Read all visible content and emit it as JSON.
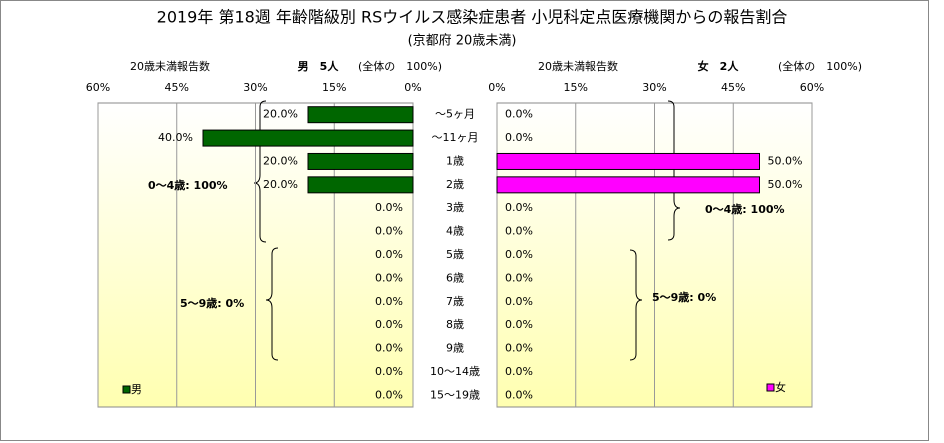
{
  "chart_data": {
    "type": "bar",
    "orientation": "horizontal-mirrored",
    "title": "2019年 第18週 年齢階級別 RSウイルス感染症患者 小児科定点医療機関からの報告割合",
    "subtitle": "(京都府 20歳未満)",
    "categories": [
      "～5ヶ月",
      "～11ヶ月",
      "1歳",
      "2歳",
      "3歳",
      "4歳",
      "5歳",
      "6歳",
      "7歳",
      "8歳",
      "9歳",
      "10～14歳",
      "15～19歳"
    ],
    "xlim": [
      0,
      60
    ],
    "xticks": [
      {
        "value": 0,
        "label": "0%"
      },
      {
        "value": 15,
        "label": "15%"
      },
      {
        "value": 30,
        "label": "30%"
      },
      {
        "value": 45,
        "label": "45%"
      },
      {
        "value": 60,
        "label": "60%"
      }
    ],
    "grid": true,
    "series": [
      {
        "name": "男",
        "color": "#006600",
        "panel_label": "20歳未満報告数",
        "total_label": "男　5人",
        "share_label": "(全体の　100%)",
        "values": [
          20,
          40,
          20,
          20,
          0,
          0,
          0,
          0,
          0,
          0,
          0,
          0,
          0
        ],
        "value_labels": [
          "20.0%",
          "40.0%",
          "20.0%",
          "20.0%",
          "0.0%",
          "0.0%",
          "0.0%",
          "0.0%",
          "0.0%",
          "0.0%",
          "0.0%",
          "0.0%",
          "0.0%"
        ],
        "annotations": [
          "0～4歳: 100%",
          "5～9歳: 0%"
        ]
      },
      {
        "name": "女",
        "color": "#ff00ff",
        "panel_label": "20歳未満報告数",
        "total_label": "女　2人",
        "share_label": "(全体の　100%)",
        "values": [
          0,
          0,
          50,
          50,
          0,
          0,
          0,
          0,
          0,
          0,
          0,
          0,
          0
        ],
        "value_labels": [
          "0.0%",
          "0.0%",
          "50.0%",
          "50.0%",
          "0.0%",
          "0.0%",
          "0.0%",
          "0.0%",
          "0.0%",
          "0.0%",
          "0.0%",
          "0.0%",
          "0.0%"
        ],
        "annotations": [
          "0～4歳: 100%",
          "5～9歳: 0%"
        ]
      }
    ]
  }
}
